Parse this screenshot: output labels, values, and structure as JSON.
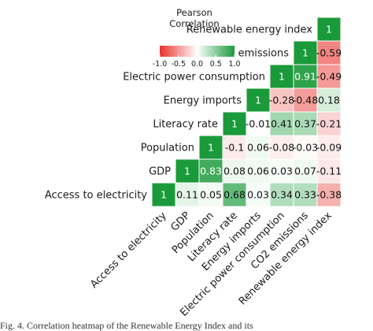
{
  "chart_data": {
    "type": "heatmap",
    "variables": [
      "Access to electricity",
      "GDP",
      "Population",
      "Literacy rate",
      "Energy imports",
      "Electric power consumption",
      "CO2 emissions",
      "Renewable energy index"
    ],
    "cells": [
      {
        "row": "Access to electricity",
        "col": "Access to electricity",
        "value": 1
      },
      {
        "row": "Access to electricity",
        "col": "GDP",
        "value": 0.11
      },
      {
        "row": "Access to electricity",
        "col": "Population",
        "value": 0.05
      },
      {
        "row": "Access to electricity",
        "col": "Literacy rate",
        "value": 0.68
      },
      {
        "row": "Access to electricity",
        "col": "Energy imports",
        "value": 0.03
      },
      {
        "row": "Access to electricity",
        "col": "Electric power consumption",
        "value": 0.34
      },
      {
        "row": "Access to electricity",
        "col": "CO2 emissions",
        "value": 0.33
      },
      {
        "row": "Access to electricity",
        "col": "Renewable energy index",
        "value": -0.38
      },
      {
        "row": "GDP",
        "col": "GDP",
        "value": 1
      },
      {
        "row": "GDP",
        "col": "Population",
        "value": 0.83
      },
      {
        "row": "GDP",
        "col": "Literacy rate",
        "value": 0.08
      },
      {
        "row": "GDP",
        "col": "Energy imports",
        "value": 0.06
      },
      {
        "row": "GDP",
        "col": "Electric power consumption",
        "value": 0.03
      },
      {
        "row": "GDP",
        "col": "CO2 emissions",
        "value": 0.07
      },
      {
        "row": "GDP",
        "col": "Renewable energy index",
        "value": -0.11
      },
      {
        "row": "Population",
        "col": "Population",
        "value": 1
      },
      {
        "row": "Population",
        "col": "Literacy rate",
        "value": -0.1
      },
      {
        "row": "Population",
        "col": "Energy imports",
        "value": 0.06
      },
      {
        "row": "Population",
        "col": "Electric power consumption",
        "value": -0.08
      },
      {
        "row": "Population",
        "col": "CO2 emissions",
        "value": -0.03
      },
      {
        "row": "Population",
        "col": "Renewable energy index",
        "value": -0.09
      },
      {
        "row": "Literacy rate",
        "col": "Literacy rate",
        "value": 1
      },
      {
        "row": "Literacy rate",
        "col": "Energy imports",
        "value": -0.01
      },
      {
        "row": "Literacy rate",
        "col": "Electric power consumption",
        "value": 0.41
      },
      {
        "row": "Literacy rate",
        "col": "CO2 emissions",
        "value": 0.37
      },
      {
        "row": "Literacy rate",
        "col": "Renewable energy index",
        "value": -0.21
      },
      {
        "row": "Energy imports",
        "col": "Energy imports",
        "value": 1
      },
      {
        "row": "Energy imports",
        "col": "Electric power consumption",
        "value": -0.28
      },
      {
        "row": "Energy imports",
        "col": "CO2 emissions",
        "value": -0.48
      },
      {
        "row": "Energy imports",
        "col": "Renewable energy index",
        "value": 0.18
      },
      {
        "row": "Electric power consumption",
        "col": "Electric power consumption",
        "value": 1
      },
      {
        "row": "Electric power consumption",
        "col": "CO2 emissions",
        "value": 0.91
      },
      {
        "row": "Electric power consumption",
        "col": "Renewable energy index",
        "value": -0.49
      },
      {
        "row": "CO2 emissions",
        "col": "CO2 emissions",
        "value": 1
      },
      {
        "row": "CO2 emissions",
        "col": "Renewable energy index",
        "value": -0.59
      },
      {
        "row": "Renewable energy index",
        "col": "Renewable energy index",
        "value": 1
      }
    ],
    "legend": {
      "title_line1": "Pearson",
      "title_line2": "Correlation",
      "range": [
        -1.0,
        1.0
      ],
      "ticks": [
        "-1.0",
        "-0.5",
        "0.0",
        "0.5",
        "1.0"
      ],
      "placement": "top-left"
    },
    "colors": {
      "negative": "#e8302a",
      "zero": "#ffffff",
      "positive": "#1a9a3a",
      "cell_border": "#ffffff"
    }
  },
  "caption": "Fig. 4.  Correlation heatmap of the Renewable Energy Index and its"
}
